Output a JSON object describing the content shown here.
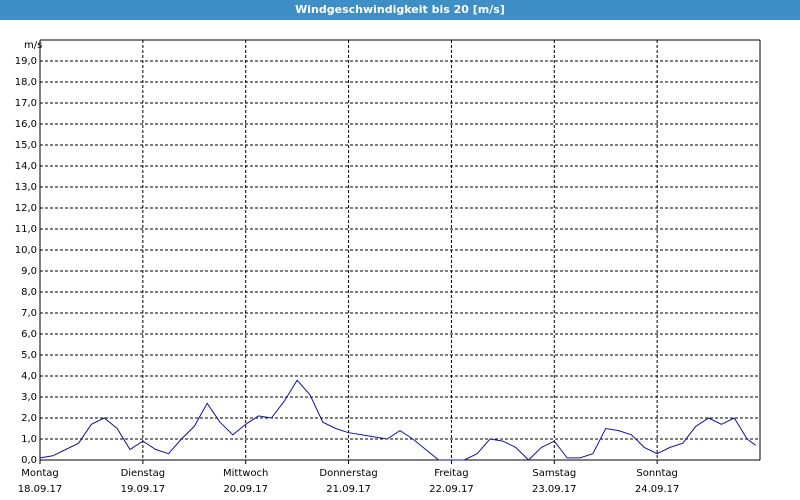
{
  "chart_data": {
    "type": "line",
    "title": "Windgeschwindigkeit bis 20 [m/s]",
    "y_label": "m/s",
    "x": [
      0,
      3,
      6,
      9,
      12,
      15,
      18,
      21,
      24,
      27,
      30,
      33,
      36,
      39,
      42,
      45,
      48,
      51,
      54,
      57,
      60,
      63,
      66,
      69,
      72,
      75,
      78,
      81,
      84,
      87,
      90,
      93,
      96,
      99,
      102,
      105,
      108,
      111,
      114,
      117,
      120,
      123,
      126,
      129,
      132,
      135,
      138,
      141,
      144,
      147,
      150,
      153,
      156,
      159,
      162,
      165,
      167
    ],
    "series": [
      {
        "color": "#1414a0",
        "values": [
          0.1,
          0.2,
          0.5,
          0.8,
          1.7,
          2.0,
          1.5,
          0.5,
          0.9,
          0.5,
          0.3,
          1.0,
          1.6,
          2.7,
          1.8,
          1.2,
          1.7,
          2.1,
          2.0,
          2.8,
          3.8,
          3.1,
          1.8,
          1.5,
          1.3,
          1.2,
          1.1,
          1.0,
          1.4,
          1.0,
          0.5,
          0.0,
          0.0,
          0.0,
          0.3,
          1.0,
          0.9,
          0.6,
          0.0,
          0.6,
          0.9,
          0.1,
          0.1,
          0.3,
          1.5,
          1.4,
          1.2,
          0.6,
          0.3,
          0.6,
          0.8,
          1.6,
          2.0,
          1.7,
          2.0,
          1.0,
          0.7
        ]
      }
    ],
    "xlim": [
      0,
      168
    ],
    "xticks": [
      {
        "value": 0,
        "label": "Montag"
      },
      {
        "value": 24,
        "label": "Dienstag"
      },
      {
        "value": 48,
        "label": "Mittwoch"
      },
      {
        "value": 72,
        "label": "Donnerstag"
      },
      {
        "value": 96,
        "label": "Freitag"
      },
      {
        "value": 120,
        "label": "Samstag"
      },
      {
        "value": 144,
        "label": "Sonntag"
      }
    ],
    "xtick_dates": [
      "18.09.17",
      "19.09.17",
      "20.09.17",
      "21.09.17",
      "22.09.17",
      "23.09.17",
      "24.09.17"
    ],
    "ylim": [
      0,
      20
    ],
    "yticks": [
      {
        "value": 0,
        "label": "0,0"
      },
      {
        "value": 1,
        "label": "1,0"
      },
      {
        "value": 2,
        "label": "2,0"
      },
      {
        "value": 3,
        "label": "3,0"
      },
      {
        "value": 4,
        "label": "4,0"
      },
      {
        "value": 5,
        "label": "5,0"
      },
      {
        "value": 6,
        "label": "6,0"
      },
      {
        "value": 7,
        "label": "7,0"
      },
      {
        "value": 8,
        "label": "8,0"
      },
      {
        "value": 9,
        "label": "9,0"
      },
      {
        "value": 10,
        "label": "10,0"
      },
      {
        "value": 11,
        "label": "11,0"
      },
      {
        "value": 12,
        "label": "12,0"
      },
      {
        "value": 13,
        "label": "13,0"
      },
      {
        "value": 14,
        "label": "14,0"
      },
      {
        "value": 15,
        "label": "15,0"
      },
      {
        "value": 16,
        "label": "16,0"
      },
      {
        "value": 17,
        "label": "17,0"
      },
      {
        "value": 18,
        "label": "18,0"
      },
      {
        "value": 19,
        "label": "19,0"
      }
    ],
    "grid": true
  }
}
